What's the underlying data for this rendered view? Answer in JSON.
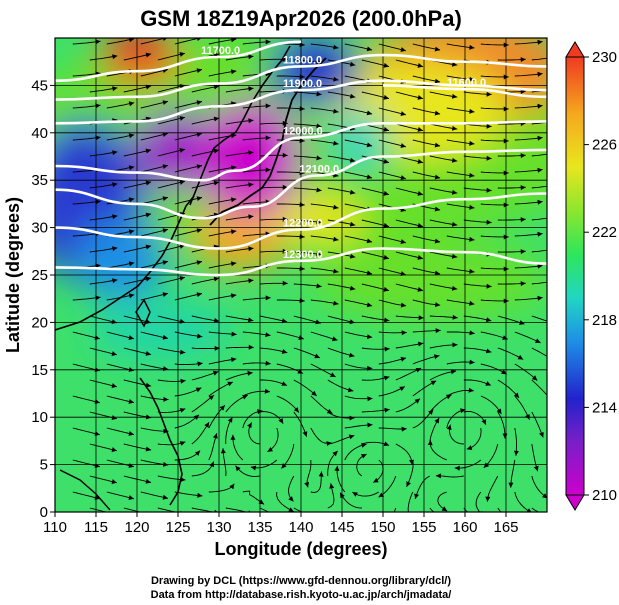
{
  "chart_data": {
    "type": "map",
    "title": "GSM 18Z19Apr2026 (200.0hPa)",
    "xlabel": "Longitude (degrees)",
    "ylabel": "Latitude  (degrees)",
    "xlim": [
      110,
      170
    ],
    "ylim": [
      0,
      50
    ],
    "x_ticks": [
      "110",
      "115",
      "120",
      "125",
      "130",
      "135",
      "140",
      "145",
      "150",
      "155",
      "160",
      "165"
    ],
    "y_ticks": [
      "0",
      "5",
      "10",
      "15",
      "20",
      "25",
      "30",
      "35",
      "40",
      "45"
    ],
    "grid": true,
    "colorbar": {
      "min": 210,
      "max": 230,
      "ticks": [
        "210",
        "214",
        "218",
        "222",
        "226",
        "230"
      ],
      "colors": [
        "#cc00cc",
        "#7a1fc8",
        "#2222cc",
        "#1e8fe6",
        "#21d6c2",
        "#2ee65a",
        "#8ee62e",
        "#e8e61e",
        "#f5a81e",
        "#ef3b20"
      ]
    },
    "field_colors": {
      "warm": "#f08a2a",
      "cold": "#4a2bd0",
      "mid": "#66e02a",
      "tropics": "#3ee06a"
    },
    "contours": [
      {
        "label": "11700.0",
        "lat_at_lon": [
          [
            110,
            45.5
          ],
          [
            120,
            46.5
          ],
          [
            130,
            48.0
          ],
          [
            140,
            49.6
          ]
        ]
      },
      {
        "label": "11800.0",
        "lat_at_lon": [
          [
            110,
            43.5
          ],
          [
            120,
            43.8
          ],
          [
            130,
            45.2
          ],
          [
            140,
            47.0
          ],
          [
            150,
            48.2
          ],
          [
            160,
            47.5
          ],
          [
            170,
            47.0
          ]
        ]
      },
      {
        "label": "11600.0",
        "lat_at_lon": [
          [
            150,
            45.0
          ],
          [
            160,
            44.6
          ],
          [
            170,
            43.8
          ]
        ]
      },
      {
        "label": "11900.0",
        "lat_at_lon": [
          [
            110,
            41.0
          ],
          [
            120,
            41.2
          ],
          [
            130,
            42.8
          ],
          [
            140,
            44.5
          ],
          [
            150,
            45.5
          ],
          [
            160,
            45.0
          ],
          [
            170,
            44.5
          ]
        ]
      },
      {
        "label": "12000.0",
        "lat_at_lon": [
          [
            110,
            36.5
          ],
          [
            120,
            35.8
          ],
          [
            128,
            35.0
          ],
          [
            132,
            36.0
          ],
          [
            140,
            39.5
          ],
          [
            150,
            41.0
          ],
          [
            160,
            41.0
          ],
          [
            170,
            41.2
          ]
        ]
      },
      {
        "label": "12100.0",
        "lat_at_lon": [
          [
            110,
            34.0
          ],
          [
            120,
            32.5
          ],
          [
            128,
            31.0
          ],
          [
            134,
            32.2
          ],
          [
            142,
            35.5
          ],
          [
            150,
            37.5
          ],
          [
            160,
            38.0
          ],
          [
            170,
            38.2
          ]
        ]
      },
      {
        "label": "12200.0",
        "lat_at_lon": [
          [
            110,
            30.0
          ],
          [
            120,
            29.0
          ],
          [
            130,
            27.8
          ],
          [
            140,
            29.8
          ],
          [
            150,
            32.0
          ],
          [
            160,
            33.0
          ],
          [
            170,
            33.6
          ]
        ]
      },
      {
        "label": "12300.0",
        "lat_at_lon": [
          [
            110,
            25.8
          ],
          [
            120,
            25.6
          ],
          [
            130,
            25.0
          ],
          [
            140,
            26.5
          ],
          [
            150,
            27.8
          ],
          [
            160,
            27.4
          ],
          [
            170,
            26.2
          ]
        ]
      }
    ],
    "annotations": [
      "Drawing by DCL (https://www.gfd-dennou.org/library/dcl/)",
      "Data from http://database.rish.kyoto-u.ac.jp/arch/jmadata/"
    ]
  }
}
